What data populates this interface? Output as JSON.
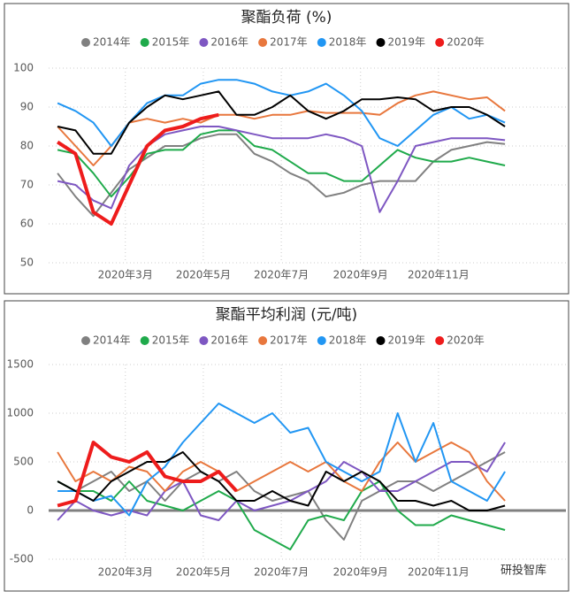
{
  "chart_data": [
    {
      "type": "line",
      "title": "聚酯负荷 (%)",
      "legend": "top",
      "grid": true,
      "x": [
        7,
        21,
        35,
        49,
        63,
        77,
        91,
        105,
        119,
        133,
        147,
        161,
        175,
        189,
        203,
        217,
        231,
        245,
        259,
        273,
        287,
        301,
        315,
        329,
        343,
        357
      ],
      "xlim": [
        0,
        377
      ],
      "xticks": [
        {
          "value": 60,
          "label": "2020年3月"
        },
        {
          "value": 121,
          "label": "2020年5月"
        },
        {
          "value": 182,
          "label": "2020年7月"
        },
        {
          "value": 244,
          "label": "2020年9月"
        },
        {
          "value": 305,
          "label": "2020年11月"
        }
      ],
      "ylim": [
        50,
        100
      ],
      "yticks": [
        50,
        60,
        70,
        80,
        90,
        100
      ],
      "series": [
        {
          "name": "2014年",
          "color": "#808080",
          "values": [
            73,
            67,
            62,
            68,
            74,
            77,
            80,
            80,
            82,
            83,
            83,
            78,
            76,
            73,
            71,
            67,
            68,
            70,
            71,
            71,
            71,
            76,
            79,
            80,
            81,
            80.5
          ]
        },
        {
          "name": "2015年",
          "color": "#1faa4b",
          "values": [
            79,
            78,
            73,
            67,
            72,
            78,
            79,
            79,
            83,
            84,
            84,
            80,
            79,
            76,
            73,
            73,
            71,
            71,
            75,
            79,
            77,
            76,
            76,
            77,
            76,
            75
          ]
        },
        {
          "name": "2016年",
          "color": "#7e57c2",
          "values": [
            71,
            70,
            66,
            64,
            75,
            80,
            83,
            84,
            85,
            85,
            84,
            83,
            82,
            82,
            82,
            83,
            82,
            80,
            63,
            71,
            80,
            81,
            82,
            82,
            82,
            81.5
          ]
        },
        {
          "name": "2017年",
          "color": "#e8773d",
          "values": [
            85,
            80,
            75,
            80,
            86,
            87,
            86,
            87,
            86,
            88,
            88,
            87,
            88,
            88,
            89,
            88.5,
            88.5,
            88.5,
            88,
            91,
            93,
            94,
            93,
            92,
            92.5,
            89
          ]
        },
        {
          "name": "2018年",
          "color": "#2196f3",
          "values": [
            91,
            89,
            86,
            80,
            86,
            91,
            93,
            93,
            96,
            97,
            97,
            96,
            94,
            93,
            94,
            96,
            93,
            89,
            82,
            80,
            84,
            88,
            90,
            87,
            88,
            86
          ]
        },
        {
          "name": "2019年",
          "color": "#000000",
          "values": [
            85,
            84,
            78,
            78,
            86,
            90,
            93,
            92,
            93,
            94,
            88,
            88,
            90,
            93,
            89,
            87,
            89,
            92,
            92,
            92.5,
            92,
            89,
            90,
            90,
            88,
            85
          ]
        },
        {
          "name": "2020年",
          "color": "#ee1c1c",
          "values": [
            81,
            78,
            63,
            60,
            70,
            80,
            84,
            85,
            87,
            88,
            null,
            null,
            null,
            null,
            null,
            null,
            null,
            null,
            null,
            null,
            null,
            null,
            null,
            null,
            null,
            null
          ]
        }
      ]
    },
    {
      "type": "line",
      "title": "聚酯平均利润 (元/吨)",
      "legend": "top",
      "grid": true,
      "x": [
        7,
        21,
        35,
        49,
        63,
        77,
        91,
        105,
        119,
        133,
        147,
        161,
        175,
        189,
        203,
        217,
        231,
        245,
        259,
        273,
        287,
        301,
        315,
        329,
        343,
        357
      ],
      "xlim": [
        0,
        377
      ],
      "xticks": [
        {
          "value": 60,
          "label": "2020年3月"
        },
        {
          "value": 121,
          "label": "2020年5月"
        },
        {
          "value": 182,
          "label": "2020年7月"
        },
        {
          "value": 244,
          "label": "2020年9月"
        },
        {
          "value": 305,
          "label": "2020年11月"
        }
      ],
      "ylim": [
        -500,
        1500
      ],
      "yticks": [
        -500,
        0,
        500,
        1000,
        1500
      ],
      "series": [
        {
          "name": "2014年",
          "color": "#808080",
          "values": [
            300,
            200,
            300,
            400,
            200,
            300,
            100,
            300,
            400,
            300,
            400,
            200,
            100,
            150,
            200,
            -100,
            -300,
            100,
            200,
            300,
            300,
            200,
            300,
            400,
            500,
            600
          ]
        },
        {
          "name": "2015年",
          "color": "#1faa4b",
          "values": [
            300,
            200,
            200,
            100,
            300,
            100,
            50,
            0,
            100,
            200,
            100,
            -200,
            -300,
            -400,
            -100,
            -50,
            -100,
            200,
            300,
            0,
            -150,
            -150,
            -50,
            -100,
            -150,
            -200
          ]
        },
        {
          "name": "2016年",
          "color": "#7e57c2",
          "values": [
            -100,
            100,
            0,
            -50,
            0,
            -50,
            200,
            300,
            -50,
            -100,
            100,
            0,
            50,
            100,
            200,
            300,
            500,
            400,
            200,
            200,
            300,
            400,
            500,
            500,
            400,
            700
          ]
        },
        {
          "name": "2017年",
          "color": "#e8773d",
          "values": [
            600,
            300,
            400,
            300,
            450,
            400,
            200,
            400,
            500,
            400,
            200,
            300,
            400,
            500,
            400,
            500,
            300,
            200,
            500,
            700,
            500,
            600,
            700,
            600,
            300,
            100
          ]
        },
        {
          "name": "2018年",
          "color": "#2196f3",
          "values": [
            200,
            200,
            100,
            150,
            -50,
            300,
            450,
            700,
            900,
            1100,
            1000,
            900,
            1000,
            800,
            850,
            500,
            400,
            300,
            400,
            1000,
            500,
            900,
            300,
            200,
            100,
            400
          ]
        },
        {
          "name": "2019年",
          "color": "#000000",
          "values": [
            300,
            200,
            100,
            300,
            400,
            500,
            500,
            600,
            400,
            300,
            100,
            100,
            200,
            100,
            50,
            400,
            300,
            400,
            300,
            100,
            100,
            50,
            100,
            0,
            0,
            50
          ]
        },
        {
          "name": "2020年",
          "color": "#ee1c1c",
          "values": [
            50,
            100,
            700,
            550,
            500,
            600,
            350,
            300,
            300,
            400,
            200,
            null,
            null,
            null,
            null,
            null,
            null,
            null,
            null,
            null,
            null,
            null,
            null,
            null,
            null,
            null
          ]
        }
      ]
    }
  ],
  "watermark": "研投智库"
}
